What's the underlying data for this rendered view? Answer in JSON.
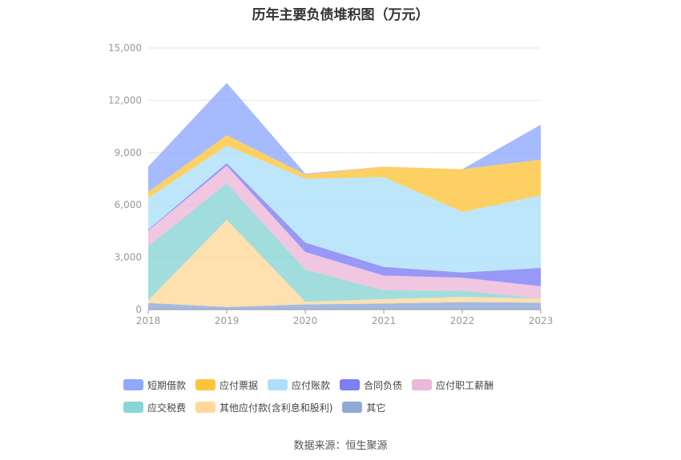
{
  "chart_data": {
    "type": "area",
    "title": "历年主要负债堆积图（万元）",
    "x": [
      "2018",
      "2019",
      "2020",
      "2021",
      "2022",
      "2023"
    ],
    "ylim": [
      0,
      15000
    ],
    "yticks": [
      0,
      3000,
      6000,
      9000,
      12000,
      15000
    ],
    "ytick_labels": [
      "0",
      "3,000",
      "6,000",
      "9,000",
      "12,000",
      "15,000"
    ],
    "stacked": true,
    "grid": true,
    "legend_position": "bottom",
    "series": [
      {
        "name": "其它",
        "color": "#8fa9d9",
        "values": [
          380,
          150,
          300,
          350,
          430,
          400
        ]
      },
      {
        "name": "其他应付款(含利息和股利)",
        "color": "#ffd89a",
        "values": [
          150,
          5000,
          150,
          250,
          300,
          230
        ]
      },
      {
        "name": "应交税费",
        "color": "#8ad5d5",
        "values": [
          3100,
          2100,
          1850,
          500,
          350,
          10
        ]
      },
      {
        "name": "应付职工薪酬",
        "color": "#ecb8da",
        "values": [
          900,
          1000,
          1000,
          850,
          750,
          700
        ]
      },
      {
        "name": "合同负债",
        "color": "#7e7ef5",
        "values": [
          50,
          150,
          550,
          500,
          300,
          1050
        ]
      },
      {
        "name": "应付账款",
        "color": "#ace0f9",
        "values": [
          1820,
          1000,
          3650,
          5150,
          3470,
          4160
        ]
      },
      {
        "name": "应付票据",
        "color": "#fcc43c",
        "values": [
          350,
          600,
          250,
          600,
          2450,
          2050
        ]
      },
      {
        "name": "短期借款",
        "color": "#8faafc",
        "values": [
          1450,
          3000,
          50,
          0,
          0,
          2000
        ]
      }
    ],
    "legend_order": [
      "短期借款",
      "应付票据",
      "应付账款",
      "合同负债",
      "应付职工薪酬",
      "应交税费",
      "其他应付款(含利息和股利)",
      "其它"
    ]
  },
  "source_text": "数据来源：恒生聚源"
}
